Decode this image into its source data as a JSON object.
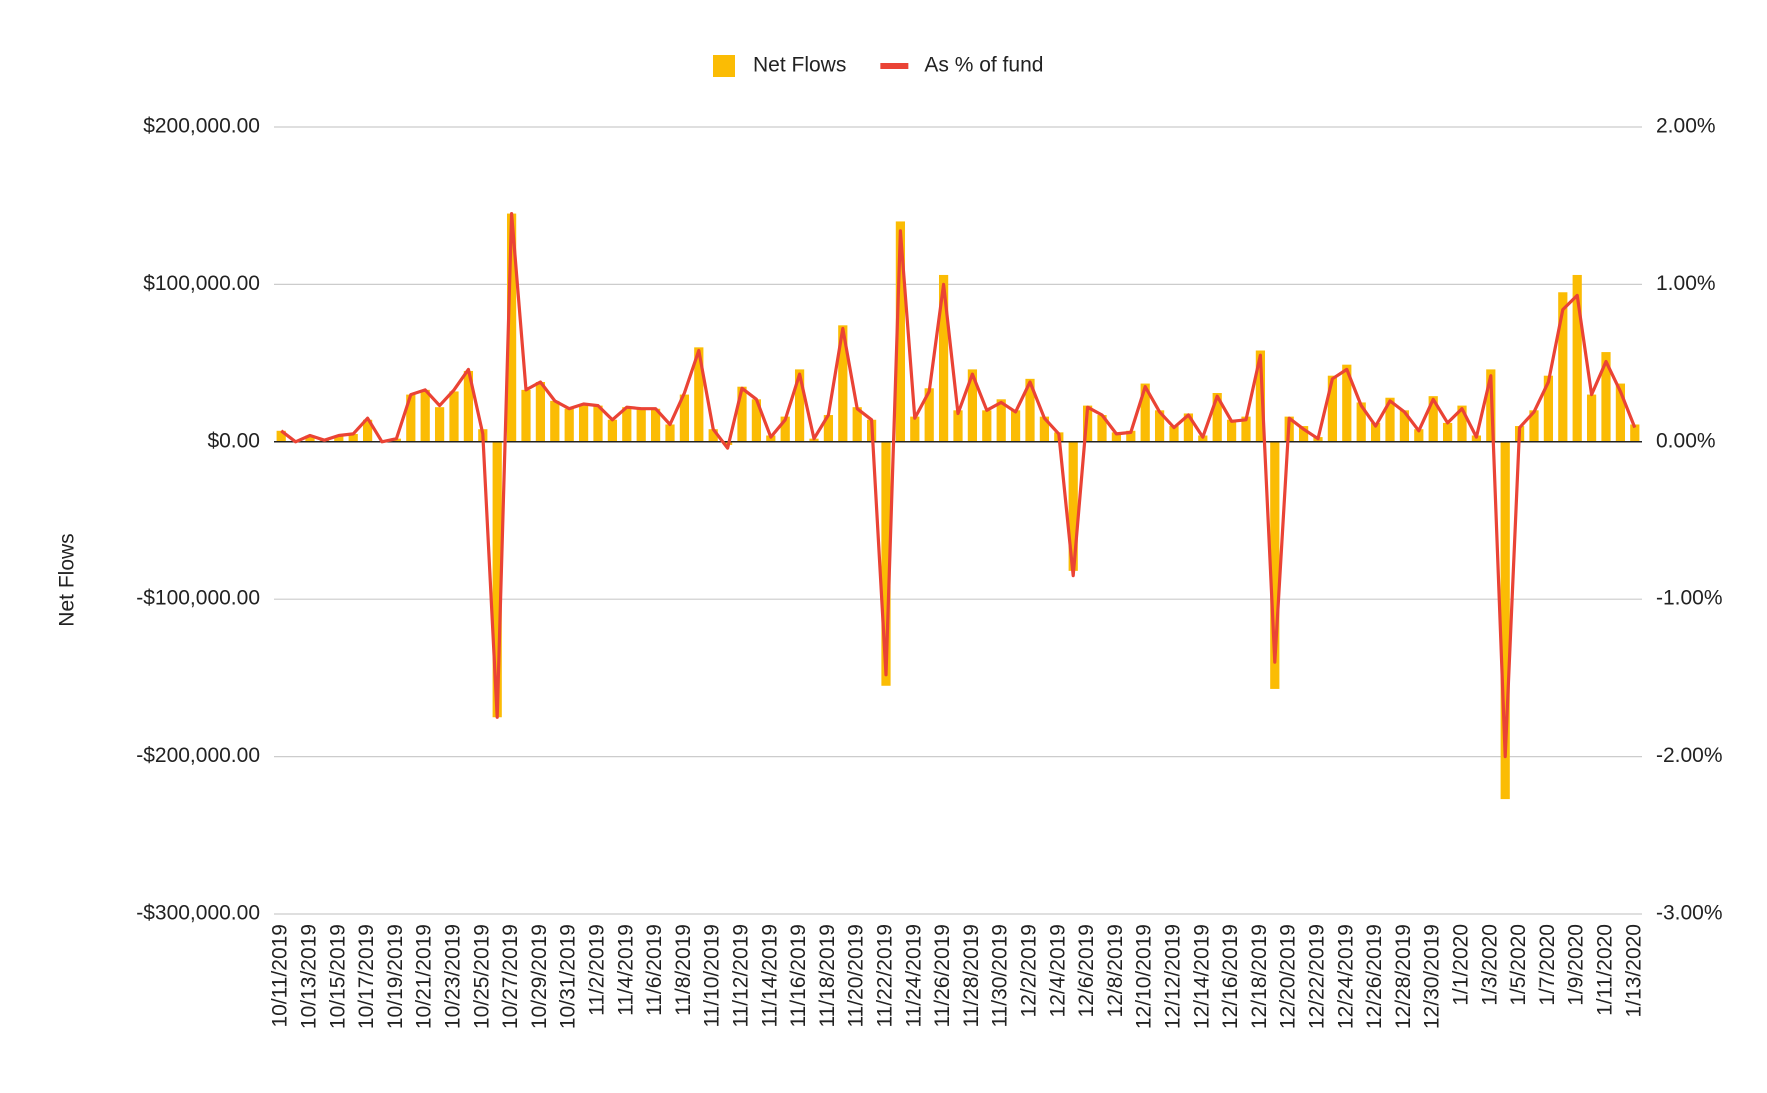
{
  "chart_data": {
    "type": "combo",
    "y_axis_label": "Net Flows",
    "legend": "top",
    "grid": true,
    "categories": [
      "10/11/2019",
      null,
      "10/13/2019",
      null,
      "10/15/2019",
      null,
      "10/17/2019",
      null,
      "10/19/2019",
      null,
      "10/21/2019",
      null,
      "10/23/2019",
      null,
      "10/25/2019",
      null,
      "10/27/2019",
      null,
      "10/29/2019",
      null,
      "10/31/2019",
      null,
      "11/2/2019",
      null,
      "11/4/2019",
      null,
      "11/6/2019",
      null,
      "11/8/2019",
      null,
      "11/10/2019",
      null,
      "11/12/2019",
      null,
      "11/14/2019",
      null,
      "11/16/2019",
      null,
      "11/18/2019",
      null,
      "11/20/2019",
      null,
      "11/22/2019",
      null,
      "11/24/2019",
      null,
      "11/26/2019",
      null,
      "11/28/2019",
      null,
      "11/30/2019",
      null,
      "12/2/2019",
      null,
      "12/4/2019",
      null,
      "12/6/2019",
      null,
      "12/8/2019",
      null,
      "12/10/2019",
      null,
      "12/12/2019",
      null,
      "12/14/2019",
      null,
      "12/16/2019",
      null,
      "12/18/2019",
      null,
      "12/20/2019",
      null,
      "12/22/2019",
      null,
      "12/24/2019",
      null,
      "12/26/2019",
      null,
      "12/28/2019",
      null,
      "12/30/2019",
      null,
      "1/1/2020",
      null,
      "1/3/2020",
      null,
      "1/5/2020",
      null,
      "1/7/2020",
      null,
      "1/9/2020",
      null,
      "1/11/2020",
      null,
      "1/13/2020"
    ],
    "series": [
      {
        "name": "Net Flows",
        "type": "bar",
        "color": "#fbbc04",
        "values": [
          7000,
          500,
          4000,
          1000,
          4000,
          5000,
          14000,
          500,
          2000,
          30000,
          33000,
          22000,
          32000,
          45000,
          8000,
          -175000,
          145000,
          33000,
          38000,
          26000,
          21000,
          24000,
          23000,
          14000,
          22000,
          21000,
          21000,
          11000,
          30000,
          60000,
          8000,
          -2000,
          35000,
          27000,
          4000,
          16000,
          46000,
          2000,
          17000,
          74000,
          22000,
          14000,
          -155000,
          140000,
          16000,
          34000,
          106000,
          20000,
          46000,
          20000,
          27000,
          20000,
          40000,
          16000,
          6000,
          -82000,
          23000,
          17000,
          6000,
          7000,
          37000,
          20000,
          10000,
          18000,
          4000,
          31000,
          14000,
          16000,
          58000,
          -157000,
          16000,
          10000,
          3000,
          42000,
          49000,
          25000,
          12000,
          28000,
          20000,
          8000,
          29000,
          12000,
          23000,
          4000,
          46000,
          -227000,
          10000,
          20000,
          42000,
          95000,
          106000,
          30000,
          57000,
          37000,
          11000
        ]
      },
      {
        "name": "As % of fund",
        "type": "line",
        "axis": "y2",
        "color": "#ea4335",
        "values": [
          0.07,
          0.0,
          0.04,
          0.01,
          0.04,
          0.05,
          0.15,
          0.0,
          0.02,
          0.3,
          0.33,
          0.23,
          0.33,
          0.46,
          0.05,
          -1.75,
          1.45,
          0.33,
          0.38,
          0.26,
          0.21,
          0.24,
          0.23,
          0.14,
          0.22,
          0.21,
          0.21,
          0.11,
          0.31,
          0.58,
          0.08,
          -0.04,
          0.34,
          0.27,
          0.03,
          0.14,
          0.43,
          0.02,
          0.17,
          0.72,
          0.21,
          0.14,
          -1.48,
          1.34,
          0.15,
          0.32,
          1.0,
          0.18,
          0.43,
          0.2,
          0.25,
          0.19,
          0.38,
          0.15,
          0.05,
          -0.85,
          0.22,
          0.17,
          0.05,
          0.06,
          0.35,
          0.19,
          0.09,
          0.17,
          0.03,
          0.29,
          0.13,
          0.14,
          0.55,
          -1.4,
          0.15,
          0.08,
          0.02,
          0.4,
          0.46,
          0.23,
          0.1,
          0.26,
          0.19,
          0.07,
          0.27,
          0.12,
          0.21,
          0.03,
          0.42,
          -2.0,
          0.09,
          0.19,
          0.38,
          0.84,
          0.93,
          0.3,
          0.51,
          0.32,
          0.09
        ]
      }
    ],
    "ylim": [
      -300000,
      200000
    ],
    "yticks": [
      {
        "value": -300000,
        "label": "-$300,000.00"
      },
      {
        "value": -200000,
        "label": "-$200,000.00"
      },
      {
        "value": -100000,
        "label": "-$100,000.00"
      },
      {
        "value": 0,
        "label": "$0.00"
      },
      {
        "value": 100000,
        "label": "$100,000.00"
      },
      {
        "value": 200000,
        "label": "$200,000.00"
      }
    ],
    "y2lim": [
      -3,
      2
    ],
    "y2ticks": [
      {
        "value": -3,
        "label": "-3.00%"
      },
      {
        "value": -2,
        "label": "-2.00%"
      },
      {
        "value": -1,
        "label": "-1.00%"
      },
      {
        "value": 0,
        "label": "0.00%"
      },
      {
        "value": 1,
        "label": "1.00%"
      },
      {
        "value": 2,
        "label": "2.00%"
      }
    ]
  }
}
